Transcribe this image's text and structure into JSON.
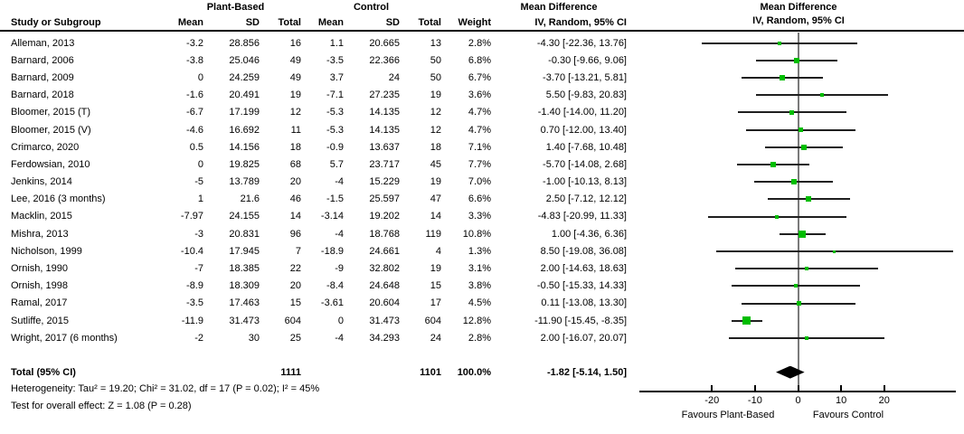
{
  "colors": {
    "marker_green": "#00bd00",
    "ci_line": "#1f1f1f",
    "zero_line": "#7a7a7a",
    "diamond": "#000000",
    "text": "#000000",
    "background": "#ffffff"
  },
  "table": {
    "study_col_header": "Study or Subgroup",
    "group1_header": "Plant-Based",
    "group2_header": "Control",
    "mean_header": "Mean",
    "sd_header": "SD",
    "total_header": "Total",
    "weight_header": "Weight",
    "md_header_line1": "Mean Difference",
    "md_header_line2": "IV, Random, 95% CI"
  },
  "plot_header": {
    "line1": "Mean Difference",
    "line2": "IV, Random, 95% CI"
  },
  "chart_data": {
    "type": "scatter",
    "subtype": "forest-plot-meta-analysis",
    "title": "Mean Difference, IV, Random, 95% CI",
    "x_ticks": [
      -20,
      -10,
      0,
      10,
      20
    ],
    "xlim": [
      -36.8,
      36.8
    ],
    "favours_left": "Favours Plant-Based",
    "favours_right": "Favours Control",
    "studies": [
      {
        "name": "Alleman, 2013",
        "mean1": "-3.2",
        "sd1": "28.856",
        "n1": "16",
        "mean2": "1.1",
        "sd2": "20.665",
        "n2": "13",
        "weight": "2.8%",
        "ci_text": "-4.30 [-22.36, 13.76]",
        "md": -4.3,
        "lo": -22.36,
        "hi": 13.76
      },
      {
        "name": "Barnard, 2006",
        "mean1": "-3.8",
        "sd1": "25.046",
        "n1": "49",
        "mean2": "-3.5",
        "sd2": "22.366",
        "n2": "50",
        "weight": "6.8%",
        "ci_text": "-0.30 [-9.66, 9.06]",
        "md": -0.3,
        "lo": -9.66,
        "hi": 9.06
      },
      {
        "name": "Barnard, 2009",
        "mean1": "0",
        "sd1": "24.259",
        "n1": "49",
        "mean2": "3.7",
        "sd2": "24",
        "n2": "50",
        "weight": "6.7%",
        "ci_text": "-3.70 [-13.21, 5.81]",
        "md": -3.7,
        "lo": -13.21,
        "hi": 5.81
      },
      {
        "name": "Barnard, 2018",
        "mean1": "-1.6",
        "sd1": "20.491",
        "n1": "19",
        "mean2": "-7.1",
        "sd2": "27.235",
        "n2": "19",
        "weight": "3.6%",
        "ci_text": "5.50 [-9.83, 20.83]",
        "md": 5.5,
        "lo": -9.83,
        "hi": 20.83
      },
      {
        "name": "Bloomer, 2015 (T)",
        "mean1": "-6.7",
        "sd1": "17.199",
        "n1": "12",
        "mean2": "-5.3",
        "sd2": "14.135",
        "n2": "12",
        "weight": "4.7%",
        "ci_text": "-1.40 [-14.00, 11.20]",
        "md": -1.4,
        "lo": -14.0,
        "hi": 11.2
      },
      {
        "name": "Bloomer, 2015 (V)",
        "mean1": "-4.6",
        "sd1": "16.692",
        "n1": "11",
        "mean2": "-5.3",
        "sd2": "14.135",
        "n2": "12",
        "weight": "4.7%",
        "ci_text": "0.70 [-12.00, 13.40]",
        "md": 0.7,
        "lo": -12.0,
        "hi": 13.4
      },
      {
        "name": "Crimarco, 2020",
        "mean1": "0.5",
        "sd1": "14.156",
        "n1": "18",
        "mean2": "-0.9",
        "sd2": "13.637",
        "n2": "18",
        "weight": "7.1%",
        "ci_text": "1.40 [-7.68, 10.48]",
        "md": 1.4,
        "lo": -7.68,
        "hi": 10.48
      },
      {
        "name": "Ferdowsian, 2010",
        "mean1": "0",
        "sd1": "19.825",
        "n1": "68",
        "mean2": "5.7",
        "sd2": "23.717",
        "n2": "45",
        "weight": "7.7%",
        "ci_text": "-5.70 [-14.08, 2.68]",
        "md": -5.7,
        "lo": -14.08,
        "hi": 2.68
      },
      {
        "name": "Jenkins, 2014",
        "mean1": "-5",
        "sd1": "13.789",
        "n1": "20",
        "mean2": "-4",
        "sd2": "15.229",
        "n2": "19",
        "weight": "7.0%",
        "ci_text": "-1.00 [-10.13, 8.13]",
        "md": -1.0,
        "lo": -10.13,
        "hi": 8.13
      },
      {
        "name": "Lee, 2016 (3 months)",
        "mean1": "1",
        "sd1": "21.6",
        "n1": "46",
        "mean2": "-1.5",
        "sd2": "25.597",
        "n2": "47",
        "weight": "6.6%",
        "ci_text": "2.50 [-7.12, 12.12]",
        "md": 2.5,
        "lo": -7.12,
        "hi": 12.12
      },
      {
        "name": "Macklin, 2015",
        "mean1": "-7.97",
        "sd1": "24.155",
        "n1": "14",
        "mean2": "-3.14",
        "sd2": "19.202",
        "n2": "14",
        "weight": "3.3%",
        "ci_text": "-4.83 [-20.99, 11.33]",
        "md": -4.83,
        "lo": -20.99,
        "hi": 11.33
      },
      {
        "name": "Mishra, 2013",
        "mean1": "-3",
        "sd1": "20.831",
        "n1": "96",
        "mean2": "-4",
        "sd2": "18.768",
        "n2": "119",
        "weight": "10.8%",
        "ci_text": "1.00 [-4.36, 6.36]",
        "md": 1.0,
        "lo": -4.36,
        "hi": 6.36
      },
      {
        "name": "Nicholson, 1999",
        "mean1": "-10.4",
        "sd1": "17.945",
        "n1": "7",
        "mean2": "-18.9",
        "sd2": "24.661",
        "n2": "4",
        "weight": "1.3%",
        "ci_text": "8.50 [-19.08, 36.08]",
        "md": 8.5,
        "lo": -19.08,
        "hi": 36.08
      },
      {
        "name": "Ornish, 1990",
        "mean1": "-7",
        "sd1": "18.385",
        "n1": "22",
        "mean2": "-9",
        "sd2": "32.802",
        "n2": "19",
        "weight": "3.1%",
        "ci_text": "2.00 [-14.63, 18.63]",
        "md": 2.0,
        "lo": -14.63,
        "hi": 18.63
      },
      {
        "name": "Ornish, 1998",
        "mean1": "-8.9",
        "sd1": "18.309",
        "n1": "20",
        "mean2": "-8.4",
        "sd2": "24.648",
        "n2": "15",
        "weight": "3.8%",
        "ci_text": "-0.50 [-15.33, 14.33]",
        "md": -0.5,
        "lo": -15.33,
        "hi": 14.33
      },
      {
        "name": "Ramal, 2017",
        "mean1": "-3.5",
        "sd1": "17.463",
        "n1": "15",
        "mean2": "-3.61",
        "sd2": "20.604",
        "n2": "17",
        "weight": "4.5%",
        "ci_text": "0.11 [-13.08, 13.30]",
        "md": 0.11,
        "lo": -13.08,
        "hi": 13.3
      },
      {
        "name": "Sutliffe, 2015",
        "mean1": "-11.9",
        "sd1": "31.473",
        "n1": "604",
        "mean2": "0",
        "sd2": "31.473",
        "n2": "604",
        "weight": "12.8%",
        "ci_text": "-11.90 [-15.45, -8.35]",
        "md": -11.9,
        "lo": -15.45,
        "hi": -8.35
      },
      {
        "name": "Wright, 2017 (6 months)",
        "mean1": "-2",
        "sd1": "30",
        "n1": "25",
        "mean2": "-4",
        "sd2": "34.293",
        "n2": "24",
        "weight": "2.8%",
        "ci_text": "2.00 [-16.07, 20.07]",
        "md": 2.0,
        "lo": -16.07,
        "hi": 20.07
      }
    ],
    "total": {
      "label": "Total (95% CI)",
      "n1": "1111",
      "n2": "1101",
      "weight": "100.0%",
      "ci_text": "-1.82 [-5.14, 1.50]",
      "md": -1.82,
      "lo": -5.14,
      "hi": 1.5
    }
  },
  "footer": {
    "heterogeneity": "Heterogeneity: Tau² = 19.20; Chi² = 31.02, df = 17 (P = 0.02); I² = 45%",
    "overall_effect": "Test for overall effect: Z = 1.08 (P = 0.28)"
  }
}
